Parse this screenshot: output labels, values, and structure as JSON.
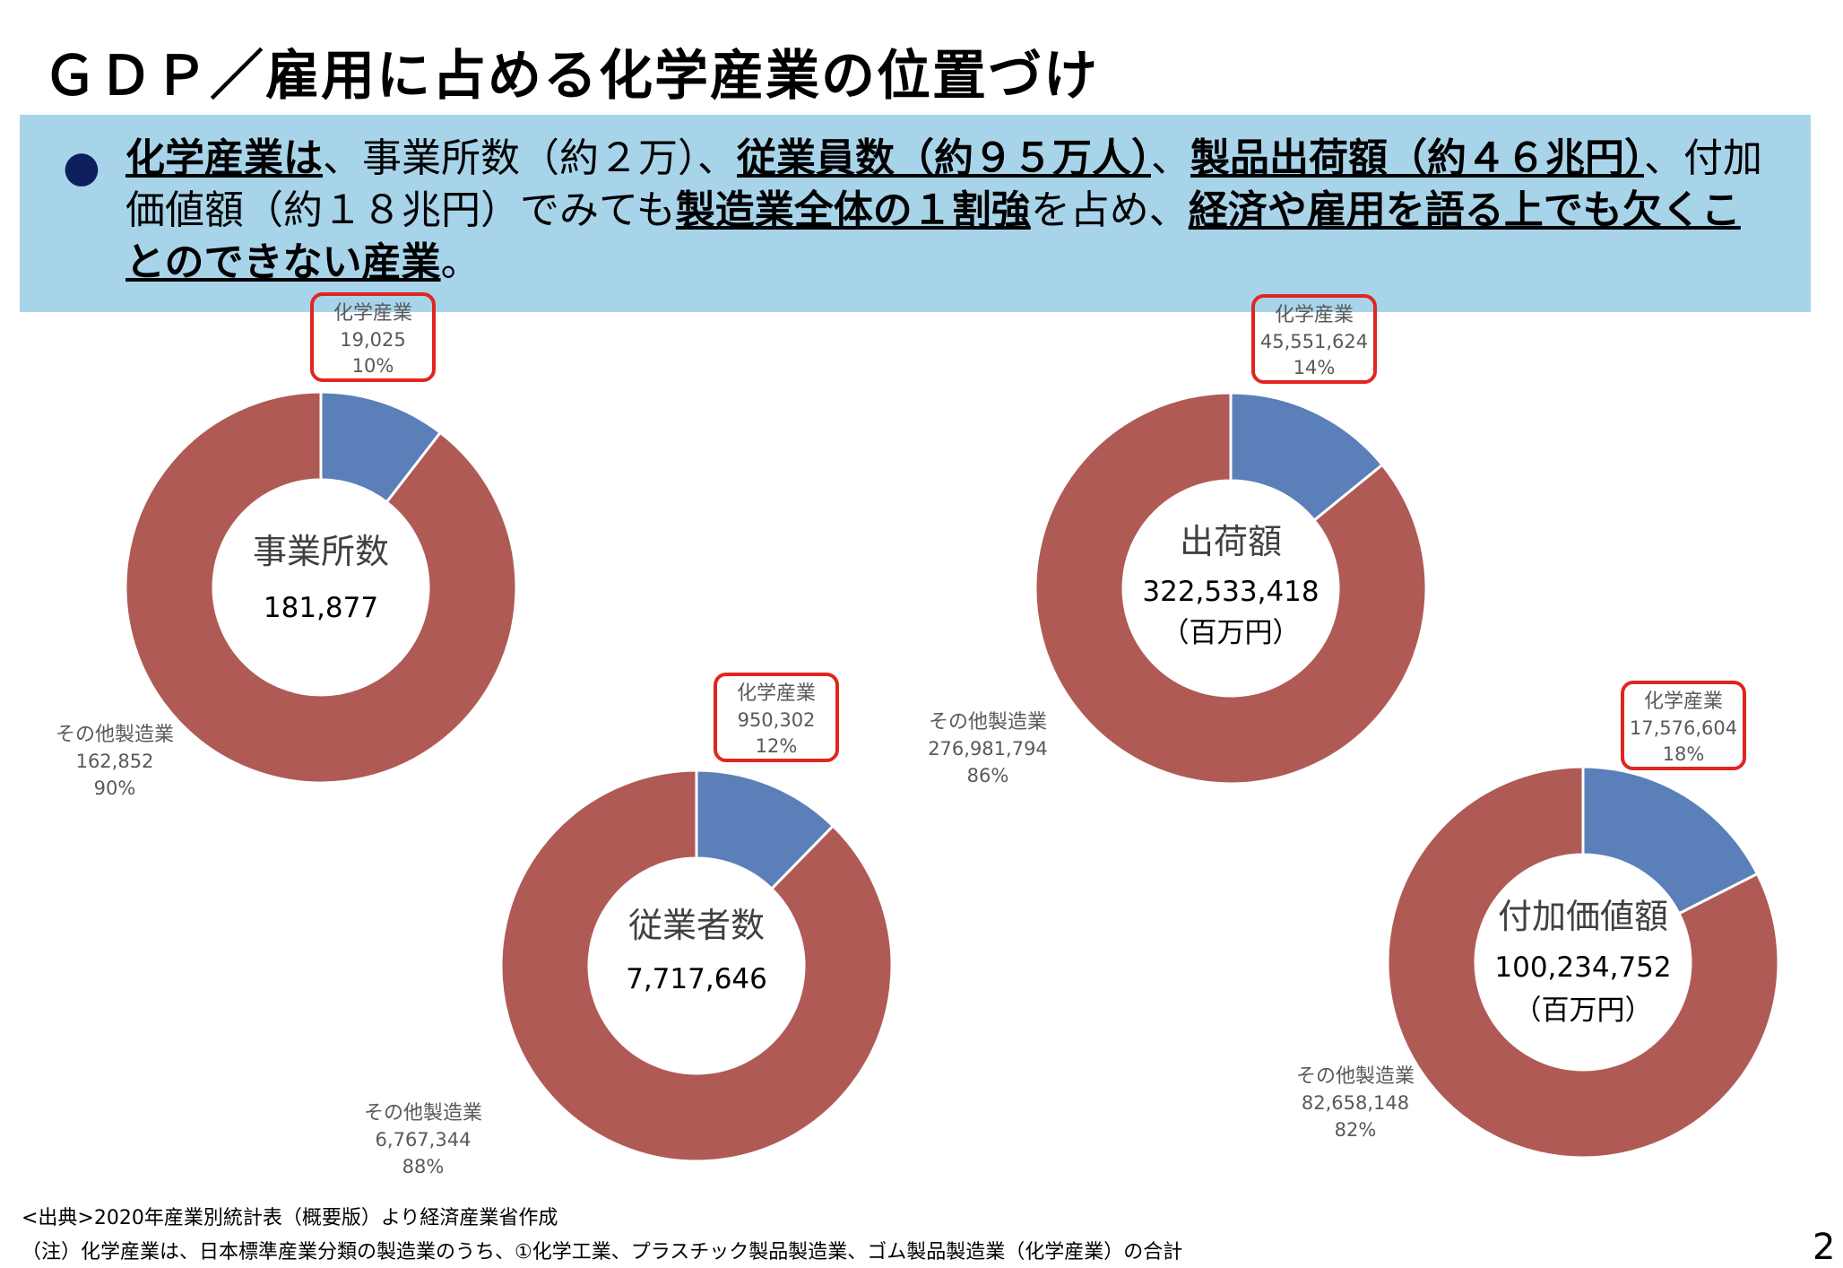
{
  "title": "ＧＤＰ／雇用に占める化学産業の位置づけ",
  "summary": [
    {
      "text": "化学産業は",
      "bold": true
    },
    {
      "text": "、事業所数（約２万）、",
      "bold": false
    },
    {
      "text": "従業員数（約９５万人）",
      "bold": true
    },
    {
      "text": "、",
      "bold": false
    },
    {
      "text": "製品出荷額（約４６兆円）",
      "bold": true
    },
    {
      "text": "、付加価値額（約１８兆円）でみても",
      "bold": false
    },
    {
      "text": "製造業全体の１割強",
      "bold": true
    },
    {
      "text": "を占め、",
      "bold": false
    },
    {
      "text": "経済や雇用を語る上でも欠くことのできない産業",
      "bold": true
    },
    {
      "text": "。",
      "bold": false
    }
  ],
  "colors": {
    "chemical": "#5b7fb8",
    "other": "#b05a55",
    "highlight": "#e0261f",
    "summary_bg": "#a8d4ea"
  },
  "chart_data": [
    {
      "type": "pie",
      "center_label": "事業所数",
      "total": "181,877",
      "unit": "",
      "slices": [
        {
          "name": "化学産業",
          "value": 19025,
          "value_label": "19,025",
          "percent": "10%"
        },
        {
          "name": "その他製造業",
          "value": 162852,
          "value_label": "162,852",
          "percent": "90%"
        }
      ]
    },
    {
      "type": "pie",
      "center_label": "従業者数",
      "total": "7,717,646",
      "unit": "",
      "slices": [
        {
          "name": "化学産業",
          "value": 950302,
          "value_label": "950,302",
          "percent": "12%"
        },
        {
          "name": "その他製造業",
          "value": 6767344,
          "value_label": "6,767,344",
          "percent": "88%"
        }
      ]
    },
    {
      "type": "pie",
      "center_label": "出荷額",
      "total": "322,533,418",
      "unit": "（百万円）",
      "slices": [
        {
          "name": "化学産業",
          "value": 45551624,
          "value_label": "45,551,624",
          "percent": "14%"
        },
        {
          "name": "その他製造業",
          "value": 276981794,
          "value_label": "276,981,794",
          "percent": "86%"
        }
      ]
    },
    {
      "type": "pie",
      "center_label": "付加価値額",
      "total": "100,234,752",
      "unit": "（百万円）",
      "slices": [
        {
          "name": "化学産業",
          "value": 17576604,
          "value_label": "17,576,604",
          "percent": "18%"
        },
        {
          "name": "その他製造業",
          "value": 82658148,
          "value_label": "82,658,148",
          "percent": "82%"
        }
      ]
    }
  ],
  "footer": {
    "source": "<出典>2020年産業別統計表（概要版）より経済産業省作成",
    "note": "（注）化学産業は、日本標準産業分類の製造業のうち、①化学工業、プラスチック製品製造業、ゴム製品製造業（化学産業）の合計"
  },
  "page_number": "2"
}
